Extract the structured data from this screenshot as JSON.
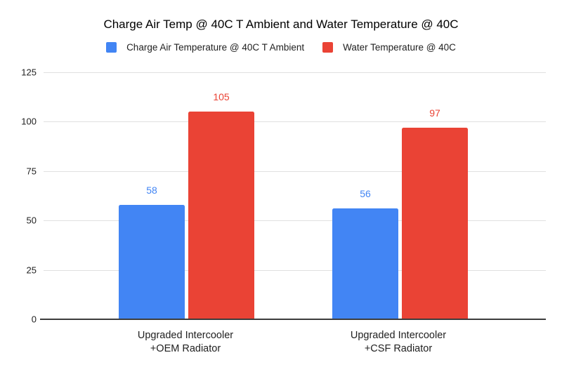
{
  "chart_data": {
    "type": "bar",
    "title": "Charge Air Temp @ 40C T Ambient and Water Temperature @ 40C",
    "categories": [
      "Upgraded Intercooler\n+OEM Radiator",
      "Upgraded Intercooler\n+CSF Radiator"
    ],
    "series": [
      {
        "name": "Charge Air Temperature @ 40C T Ambient",
        "color": "#4285F4",
        "values": [
          58,
          56
        ]
      },
      {
        "name": "Water Temperature @ 40C",
        "color": "#EA4335",
        "values": [
          105,
          97
        ]
      }
    ],
    "xlabel": "",
    "ylabel": "",
    "ylim": [
      0,
      125
    ],
    "yticks": [
      0,
      25,
      50,
      75,
      100,
      125
    ],
    "grid": true,
    "legend_position": "top",
    "value_labels": true,
    "colors": {
      "background": "#ffffff",
      "gridline": "#e0e0e0",
      "axis_line": "#3c3c3c",
      "title_text": "#000000",
      "label_text": "#212121"
    }
  }
}
